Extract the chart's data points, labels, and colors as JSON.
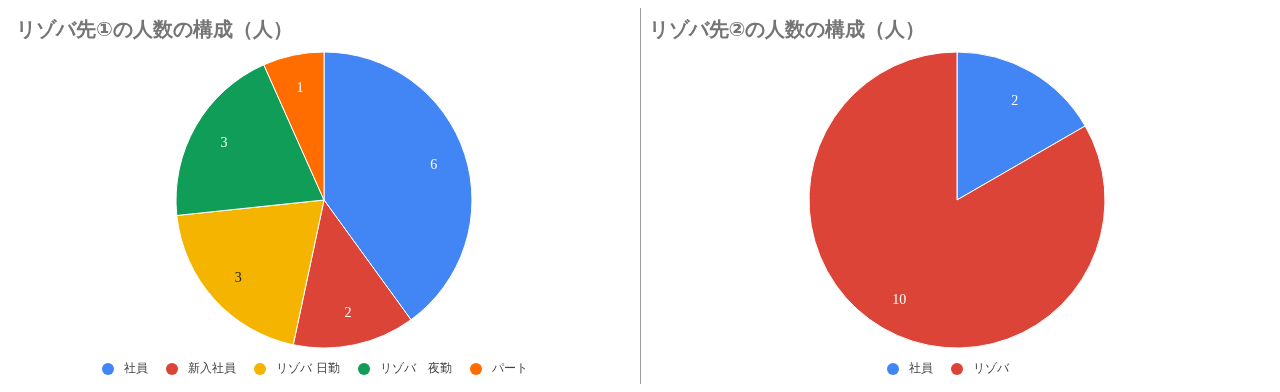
{
  "chart_data": [
    {
      "type": "pie",
      "title": "リゾバ先①の人数の構成（人）",
      "categories": [
        "社員",
        "新入社員",
        "リゾバ 日勤",
        "リゾバ　夜勤",
        "パート"
      ],
      "values": [
        6,
        2,
        3,
        3,
        1
      ],
      "colors": [
        "#4285f4",
        "#db4437",
        "#f4b400",
        "#0f9d58",
        "#ff6d01"
      ],
      "data_labels": true,
      "legend": "bottom"
    },
    {
      "type": "pie",
      "title": "リゾバ先②の人数の構成（人）",
      "categories": [
        "社員",
        "リゾバ"
      ],
      "values": [
        2,
        10
      ],
      "colors": [
        "#4285f4",
        "#db4437"
      ],
      "data_labels": true,
      "legend": "bottom"
    }
  ]
}
